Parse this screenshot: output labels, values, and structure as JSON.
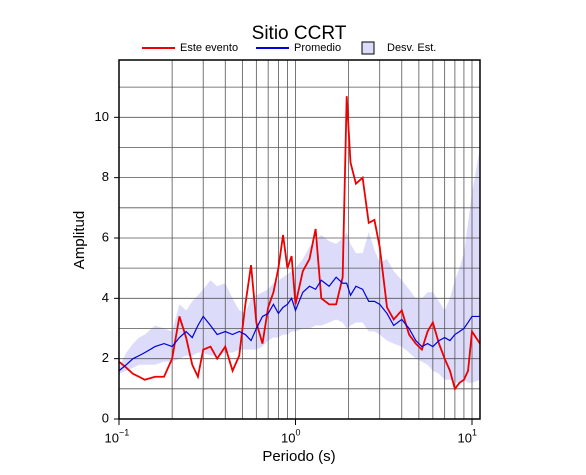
{
  "chart_data": {
    "type": "line",
    "title": "Sitio CCRT",
    "xlabel": "Periodo (s)",
    "ylabel": "Amplitud",
    "xscale": "log",
    "xlim": [
      0.1,
      11.1
    ],
    "ylim": [
      0,
      11.9
    ],
    "xticks": [
      {
        "value": 0.1,
        "label": "10",
        "exponent": "−1"
      },
      {
        "value": 1,
        "label": "10",
        "exponent": "0"
      },
      {
        "value": 10,
        "label": "10",
        "exponent": "1"
      }
    ],
    "xgrid": [
      0.2,
      0.3,
      0.4,
      0.5,
      0.6,
      0.7,
      0.8,
      0.9,
      2,
      3,
      4,
      5,
      6,
      7,
      8,
      9
    ],
    "yticks": [
      0,
      2,
      4,
      6,
      8,
      10
    ],
    "ygrid": [
      1,
      3,
      5,
      7,
      9,
      11
    ],
    "grid": true,
    "x": [
      0.1,
      0.11,
      0.12,
      0.13,
      0.14,
      0.16,
      0.18,
      0.2,
      0.22,
      0.24,
      0.26,
      0.28,
      0.3,
      0.33,
      0.36,
      0.4,
      0.44,
      0.48,
      0.52,
      0.56,
      0.6,
      0.65,
      0.7,
      0.75,
      0.8,
      0.85,
      0.9,
      0.95,
      1.0,
      1.1,
      1.2,
      1.3,
      1.4,
      1.55,
      1.7,
      1.85,
      1.95,
      2.05,
      2.2,
      2.4,
      2.6,
      2.8,
      3.0,
      3.3,
      3.6,
      4.0,
      4.4,
      4.8,
      5.2,
      5.6,
      6.0,
      6.5,
      7.0,
      7.5,
      8.0,
      8.5,
      9.0,
      9.5,
      10,
      11.1
    ],
    "series": [
      {
        "name": "Este evento",
        "color": "#ee0000",
        "values": [
          1.9,
          1.7,
          1.5,
          1.4,
          1.3,
          1.4,
          1.4,
          2.0,
          3.4,
          2.7,
          1.8,
          1.4,
          2.3,
          2.4,
          2.0,
          2.4,
          1.6,
          2.1,
          3.8,
          5.1,
          3.2,
          2.5,
          3.7,
          4.2,
          5.0,
          6.1,
          5.0,
          5.4,
          3.8,
          4.9,
          5.3,
          6.3,
          4.0,
          3.8,
          3.8,
          4.7,
          10.7,
          8.5,
          7.8,
          8.0,
          6.5,
          6.6,
          5.7,
          3.7,
          3.3,
          3.6,
          2.8,
          2.5,
          2.3,
          2.9,
          3.2,
          2.5,
          2.0,
          1.6,
          1.0,
          1.2,
          1.3,
          1.6,
          2.9,
          2.5
        ]
      },
      {
        "name": "Promedio",
        "color": "#0000dd",
        "values": [
          1.6,
          1.8,
          2.0,
          2.1,
          2.2,
          2.4,
          2.5,
          2.4,
          2.7,
          2.9,
          2.7,
          3.1,
          3.4,
          3.1,
          2.8,
          2.9,
          2.8,
          2.9,
          2.8,
          2.6,
          3.0,
          3.4,
          3.5,
          3.8,
          3.5,
          3.7,
          3.8,
          4.0,
          3.6,
          4.2,
          4.4,
          4.3,
          4.6,
          4.4,
          4.7,
          4.5,
          4.5,
          4.1,
          4.4,
          4.3,
          3.9,
          3.9,
          3.8,
          3.5,
          3.1,
          3.3,
          3.0,
          2.6,
          2.4,
          2.5,
          2.4,
          2.6,
          2.7,
          2.6,
          2.8,
          2.9,
          3.0,
          3.2,
          3.4,
          3.4
        ]
      },
      {
        "name": "Desv. Est.",
        "color": "#dcdcfa",
        "band": true,
        "upper": [
          1.7,
          2.2,
          2.5,
          2.7,
          2.8,
          3.1,
          3.0,
          2.9,
          3.8,
          3.6,
          3.9,
          4.1,
          4.3,
          4.6,
          4.4,
          4.5,
          4.0,
          3.6,
          3.5,
          4.0,
          4.1,
          4.2,
          4.3,
          4.5,
          4.6,
          4.7,
          4.8,
          4.9,
          5.0,
          5.3,
          5.7,
          5.9,
          6.1,
          5.9,
          5.8,
          6.0,
          6.2,
          5.8,
          5.5,
          5.5,
          6.2,
          5.6,
          5.2,
          5.3,
          4.9,
          4.6,
          4.3,
          4.0,
          4.0,
          4.2,
          4.2,
          3.9,
          3.6,
          4.0,
          4.6,
          5.0,
          5.5,
          6.5,
          7.5,
          9.0
        ],
        "lower": [
          1.5,
          1.6,
          1.7,
          1.8,
          1.8,
          1.8,
          1.9,
          1.9,
          2.0,
          2.1,
          2.1,
          2.2,
          2.2,
          2.1,
          2.1,
          2.2,
          2.2,
          2.3,
          2.3,
          2.3,
          2.3,
          2.4,
          2.6,
          2.7,
          2.7,
          2.8,
          2.8,
          2.9,
          2.9,
          3.0,
          3.0,
          3.1,
          3.1,
          3.2,
          3.3,
          3.2,
          3.0,
          3.1,
          3.2,
          3.2,
          2.9,
          2.9,
          2.8,
          2.6,
          2.5,
          2.4,
          2.2,
          2.0,
          1.9,
          1.8,
          1.6,
          1.5,
          1.3,
          1.3,
          1.2,
          1.2,
          1.3,
          1.2,
          1.2,
          1.3
        ]
      }
    ]
  }
}
